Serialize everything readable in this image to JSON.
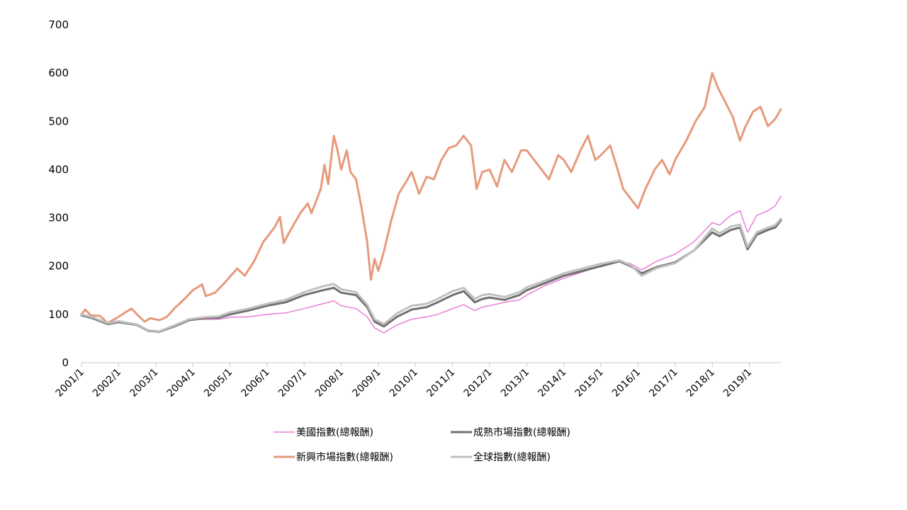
{
  "chart_data": {
    "type": "line",
    "title": "",
    "xlabel": "",
    "ylabel": "",
    "ylim": [
      0,
      700
    ],
    "yticks": [
      0,
      100,
      200,
      300,
      400,
      500,
      600,
      700
    ],
    "xticks": [
      "2001/1",
      "2002/1",
      "2003/1",
      "2004/1",
      "2005/1",
      "2006/1",
      "2007/1",
      "2008/1",
      "2009/1",
      "2010/1",
      "2011/1",
      "2012/1",
      "2013/1",
      "2014/1",
      "2015/1",
      "2016/1",
      "2017/1",
      "2018/1",
      "2019/1"
    ],
    "xlim": [
      2001.0,
      2019.85
    ],
    "grid": false,
    "legend_position": "bottom",
    "series": [
      {
        "name": "新興市場指數(總報酬)",
        "color": "#E69A7C",
        "width": 3,
        "points": [
          [
            2001.0,
            100
          ],
          [
            2001.1,
            110
          ],
          [
            2001.25,
            98
          ],
          [
            2001.5,
            97
          ],
          [
            2001.7,
            82
          ],
          [
            2002.0,
            95
          ],
          [
            2002.2,
            105
          ],
          [
            2002.35,
            112
          ],
          [
            2002.5,
            100
          ],
          [
            2002.7,
            85
          ],
          [
            2002.85,
            92
          ],
          [
            2003.1,
            88
          ],
          [
            2003.3,
            95
          ],
          [
            2003.5,
            112
          ],
          [
            2003.75,
            130
          ],
          [
            2004.0,
            150
          ],
          [
            2004.25,
            162
          ],
          [
            2004.35,
            138
          ],
          [
            2004.6,
            145
          ],
          [
            2004.85,
            165
          ],
          [
            2005.0,
            178
          ],
          [
            2005.2,
            195
          ],
          [
            2005.4,
            180
          ],
          [
            2005.65,
            210
          ],
          [
            2005.9,
            250
          ],
          [
            2006.2,
            280
          ],
          [
            2006.35,
            302
          ],
          [
            2006.45,
            248
          ],
          [
            2006.6,
            270
          ],
          [
            2006.9,
            310
          ],
          [
            2007.1,
            330
          ],
          [
            2007.2,
            310
          ],
          [
            2007.45,
            360
          ],
          [
            2007.55,
            410
          ],
          [
            2007.65,
            370
          ],
          [
            2007.8,
            470
          ],
          [
            2007.9,
            440
          ],
          [
            2008.0,
            400
          ],
          [
            2008.15,
            440
          ],
          [
            2008.25,
            395
          ],
          [
            2008.4,
            380
          ],
          [
            2008.55,
            320
          ],
          [
            2008.7,
            250
          ],
          [
            2008.8,
            172
          ],
          [
            2008.9,
            215
          ],
          [
            2009.0,
            190
          ],
          [
            2009.15,
            230
          ],
          [
            2009.35,
            295
          ],
          [
            2009.55,
            350
          ],
          [
            2009.75,
            375
          ],
          [
            2009.9,
            395
          ],
          [
            2010.1,
            350
          ],
          [
            2010.3,
            385
          ],
          [
            2010.5,
            380
          ],
          [
            2010.7,
            420
          ],
          [
            2010.9,
            445
          ],
          [
            2011.1,
            450
          ],
          [
            2011.3,
            470
          ],
          [
            2011.5,
            450
          ],
          [
            2011.65,
            360
          ],
          [
            2011.8,
            395
          ],
          [
            2012.0,
            400
          ],
          [
            2012.2,
            365
          ],
          [
            2012.4,
            420
          ],
          [
            2012.6,
            395
          ],
          [
            2012.85,
            440
          ],
          [
            2013.0,
            440
          ],
          [
            2013.2,
            420
          ],
          [
            2013.4,
            400
          ],
          [
            2013.6,
            380
          ],
          [
            2013.85,
            430
          ],
          [
            2014.0,
            420
          ],
          [
            2014.2,
            395
          ],
          [
            2014.45,
            440
          ],
          [
            2014.65,
            470
          ],
          [
            2014.85,
            420
          ],
          [
            2015.0,
            430
          ],
          [
            2015.25,
            450
          ],
          [
            2015.45,
            400
          ],
          [
            2015.6,
            360
          ],
          [
            2015.8,
            340
          ],
          [
            2016.0,
            320
          ],
          [
            2016.2,
            360
          ],
          [
            2016.45,
            400
          ],
          [
            2016.65,
            420
          ],
          [
            2016.85,
            390
          ],
          [
            2017.0,
            420
          ],
          [
            2017.3,
            460
          ],
          [
            2017.55,
            500
          ],
          [
            2017.8,
            530
          ],
          [
            2018.0,
            600
          ],
          [
            2018.15,
            570
          ],
          [
            2018.35,
            540
          ],
          [
            2018.55,
            510
          ],
          [
            2018.75,
            460
          ],
          [
            2018.9,
            490
          ],
          [
            2019.1,
            520
          ],
          [
            2019.3,
            530
          ],
          [
            2019.5,
            490
          ],
          [
            2019.7,
            505
          ],
          [
            2019.85,
            525
          ]
        ]
      },
      {
        "name": "美國指數(總報酬)",
        "color": "#E87ED6",
        "width": 1.5,
        "points": [
          [
            2001.0,
            98
          ],
          [
            2001.3,
            92
          ],
          [
            2001.7,
            82
          ],
          [
            2002.0,
            85
          ],
          [
            2002.5,
            78
          ],
          [
            2002.8,
            68
          ],
          [
            2003.1,
            65
          ],
          [
            2003.5,
            76
          ],
          [
            2003.9,
            88
          ],
          [
            2004.3,
            90
          ],
          [
            2004.7,
            90
          ],
          [
            2005.0,
            94
          ],
          [
            2005.5,
            95
          ],
          [
            2006.0,
            100
          ],
          [
            2006.5,
            103
          ],
          [
            2007.0,
            112
          ],
          [
            2007.5,
            122
          ],
          [
            2007.8,
            128
          ],
          [
            2008.0,
            118
          ],
          [
            2008.4,
            112
          ],
          [
            2008.7,
            95
          ],
          [
            2008.9,
            72
          ],
          [
            2009.15,
            62
          ],
          [
            2009.5,
            78
          ],
          [
            2009.9,
            90
          ],
          [
            2010.3,
            95
          ],
          [
            2010.6,
            100
          ],
          [
            2011.0,
            112
          ],
          [
            2011.3,
            120
          ],
          [
            2011.6,
            108
          ],
          [
            2011.8,
            115
          ],
          [
            2012.0,
            118
          ],
          [
            2012.4,
            125
          ],
          [
            2012.8,
            130
          ],
          [
            2013.0,
            140
          ],
          [
            2013.5,
            160
          ],
          [
            2014.0,
            175
          ],
          [
            2014.5,
            188
          ],
          [
            2015.0,
            200
          ],
          [
            2015.5,
            210
          ],
          [
            2015.8,
            205
          ],
          [
            2016.1,
            192
          ],
          [
            2016.5,
            210
          ],
          [
            2017.0,
            225
          ],
          [
            2017.5,
            250
          ],
          [
            2018.0,
            290
          ],
          [
            2018.2,
            285
          ],
          [
            2018.5,
            305
          ],
          [
            2018.75,
            315
          ],
          [
            2018.95,
            270
          ],
          [
            2019.2,
            305
          ],
          [
            2019.5,
            315
          ],
          [
            2019.7,
            325
          ],
          [
            2019.85,
            345
          ]
        ]
      },
      {
        "name": "成熟市場指數(總報酬)",
        "color": "#707070",
        "width": 3,
        "points": [
          [
            2001.0,
            98
          ],
          [
            2001.3,
            92
          ],
          [
            2001.7,
            80
          ],
          [
            2002.0,
            84
          ],
          [
            2002.5,
            78
          ],
          [
            2002.8,
            66
          ],
          [
            2003.1,
            64
          ],
          [
            2003.5,
            75
          ],
          [
            2003.9,
            88
          ],
          [
            2004.3,
            92
          ],
          [
            2004.7,
            93
          ],
          [
            2005.0,
            100
          ],
          [
            2005.5,
            108
          ],
          [
            2006.0,
            118
          ],
          [
            2006.5,
            125
          ],
          [
            2007.0,
            140
          ],
          [
            2007.5,
            150
          ],
          [
            2007.8,
            155
          ],
          [
            2008.0,
            145
          ],
          [
            2008.4,
            140
          ],
          [
            2008.7,
            115
          ],
          [
            2008.9,
            85
          ],
          [
            2009.15,
            75
          ],
          [
            2009.5,
            95
          ],
          [
            2009.9,
            110
          ],
          [
            2010.3,
            115
          ],
          [
            2010.6,
            125
          ],
          [
            2011.0,
            140
          ],
          [
            2011.3,
            148
          ],
          [
            2011.6,
            125
          ],
          [
            2011.8,
            132
          ],
          [
            2012.0,
            135
          ],
          [
            2012.4,
            130
          ],
          [
            2012.8,
            140
          ],
          [
            2013.0,
            150
          ],
          [
            2013.5,
            165
          ],
          [
            2014.0,
            180
          ],
          [
            2014.5,
            190
          ],
          [
            2015.0,
            200
          ],
          [
            2015.5,
            210
          ],
          [
            2015.8,
            200
          ],
          [
            2016.1,
            185
          ],
          [
            2016.5,
            198
          ],
          [
            2017.0,
            208
          ],
          [
            2017.5,
            232
          ],
          [
            2018.0,
            270
          ],
          [
            2018.2,
            262
          ],
          [
            2018.5,
            275
          ],
          [
            2018.75,
            280
          ],
          [
            2018.95,
            235
          ],
          [
            2019.2,
            265
          ],
          [
            2019.5,
            275
          ],
          [
            2019.7,
            280
          ],
          [
            2019.85,
            295
          ]
        ]
      },
      {
        "name": "全球指數(總報酬)",
        "color": "#C0C0C0",
        "width": 3,
        "points": [
          [
            2001.0,
            100
          ],
          [
            2001.3,
            94
          ],
          [
            2001.7,
            82
          ],
          [
            2002.0,
            86
          ],
          [
            2002.5,
            79
          ],
          [
            2002.8,
            67
          ],
          [
            2003.1,
            65
          ],
          [
            2003.5,
            77
          ],
          [
            2003.9,
            90
          ],
          [
            2004.3,
            94
          ],
          [
            2004.7,
            96
          ],
          [
            2005.0,
            104
          ],
          [
            2005.5,
            112
          ],
          [
            2006.0,
            122
          ],
          [
            2006.5,
            130
          ],
          [
            2007.0,
            146
          ],
          [
            2007.5,
            158
          ],
          [
            2007.8,
            163
          ],
          [
            2008.0,
            152
          ],
          [
            2008.4,
            146
          ],
          [
            2008.7,
            120
          ],
          [
            2008.9,
            90
          ],
          [
            2009.15,
            80
          ],
          [
            2009.5,
            102
          ],
          [
            2009.9,
            118
          ],
          [
            2010.3,
            122
          ],
          [
            2010.6,
            132
          ],
          [
            2011.0,
            148
          ],
          [
            2011.3,
            155
          ],
          [
            2011.6,
            132
          ],
          [
            2011.8,
            140
          ],
          [
            2012.0,
            142
          ],
          [
            2012.4,
            136
          ],
          [
            2012.8,
            146
          ],
          [
            2013.0,
            156
          ],
          [
            2013.5,
            170
          ],
          [
            2014.0,
            185
          ],
          [
            2014.5,
            195
          ],
          [
            2015.0,
            205
          ],
          [
            2015.5,
            212
          ],
          [
            2015.8,
            202
          ],
          [
            2016.1,
            180
          ],
          [
            2016.5,
            196
          ],
          [
            2017.0,
            206
          ],
          [
            2017.5,
            232
          ],
          [
            2018.0,
            278
          ],
          [
            2018.2,
            268
          ],
          [
            2018.5,
            282
          ],
          [
            2018.75,
            286
          ],
          [
            2018.95,
            240
          ],
          [
            2019.2,
            270
          ],
          [
            2019.5,
            280
          ],
          [
            2019.7,
            285
          ],
          [
            2019.85,
            298
          ]
        ]
      }
    ],
    "legend": [
      {
        "label": "美國指數(總報酬)",
        "color": "#E87ED6",
        "width": 1.5
      },
      {
        "label": "成熟市場指數(總報酬)",
        "color": "#707070",
        "width": 3
      },
      {
        "label": "新興市場指數(總報酬)",
        "color": "#E69A7C",
        "width": 3
      },
      {
        "label": "全球指數(總報酬)",
        "color": "#C0C0C0",
        "width": 3
      }
    ]
  }
}
